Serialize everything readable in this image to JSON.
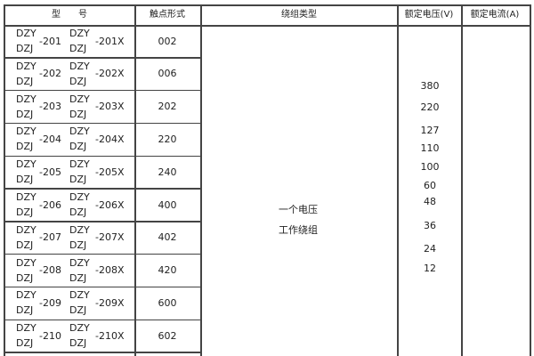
{
  "headers": {
    "model": "型　　号",
    "contact_form": "触点形式",
    "winding_type": "绕组类型",
    "rated_voltage": "额定电压(V)",
    "rated_current": "额定电流(A)"
  },
  "rows": [
    {
      "prefix_top": "DZY",
      "prefix_bottom": "DZJ",
      "num": "-201",
      "prefix2_top": "DZY",
      "prefix2_bottom": "DZJ",
      "num2": "-201X",
      "contact": "002"
    },
    {
      "prefix_top": "DZY",
      "prefix_bottom": "DZJ",
      "num": "-202",
      "prefix2_top": "DZY",
      "prefix2_bottom": "DZJ",
      "num2": "-202X",
      "contact": "006"
    },
    {
      "prefix_top": "DZY",
      "prefix_bottom": "DZJ",
      "num": "-203",
      "prefix2_top": "DZY",
      "prefix2_bottom": "DZJ",
      "num2": "-203X",
      "contact": "202"
    },
    {
      "prefix_top": "DZY",
      "prefix_bottom": "DZJ",
      "num": "-204",
      "prefix2_top": "DZY",
      "prefix2_bottom": "DZJ",
      "num2": "-204X",
      "contact": "220"
    },
    {
      "prefix_top": "DZY",
      "prefix_bottom": "DZJ",
      "num": "-205",
      "prefix2_top": "DZY",
      "prefix2_bottom": "DZJ",
      "num2": "-205X",
      "contact": "240"
    },
    {
      "prefix_top": "DZY",
      "prefix_bottom": "DZJ",
      "num": "-206",
      "prefix2_top": "DZY",
      "prefix2_bottom": "DZJ",
      "num2": "-206X",
      "contact": "400"
    },
    {
      "prefix_top": "DZY",
      "prefix_bottom": "DZJ",
      "num": "-207",
      "prefix2_top": "DZY",
      "prefix2_bottom": "DZJ",
      "num2": "-207X",
      "contact": "402"
    },
    {
      "prefix_top": "DZY",
      "prefix_bottom": "DZJ",
      "num": "-208",
      "prefix2_top": "DZY",
      "prefix2_bottom": "DZJ",
      "num2": "-208X",
      "contact": "420"
    },
    {
      "prefix_top": "DZY",
      "prefix_bottom": "DZJ",
      "num": "-209",
      "prefix2_top": "DZY",
      "prefix2_bottom": "DZJ",
      "num2": "-209X",
      "contact": "600"
    },
    {
      "prefix_top": "DZY",
      "prefix_bottom": "DZJ",
      "num": "-210",
      "prefix2_top": "DZY",
      "prefix2_bottom": "DZJ",
      "num2": "-210X",
      "contact": "602"
    }
  ],
  "winding": {
    "line1": "一个电压",
    "line2": "工作绕组"
  },
  "voltages": [
    "380",
    "220",
    "127",
    "110",
    "100",
    "60",
    "48",
    "36",
    "24",
    "12"
  ]
}
